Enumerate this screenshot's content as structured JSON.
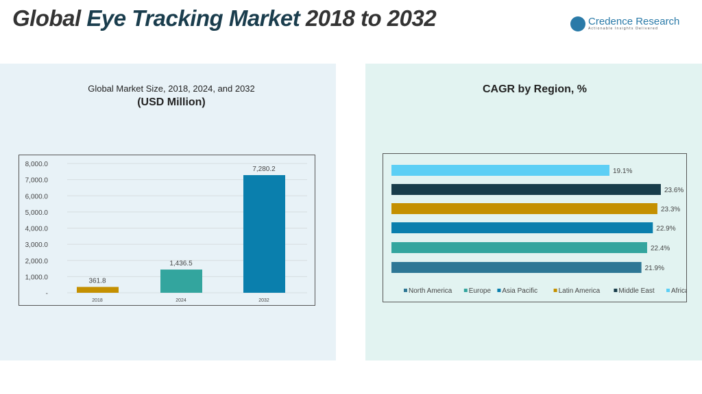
{
  "header": {
    "title_prefix": "Global ",
    "title_accent": "Eye Tracking Market",
    "title_suffix": " 2018 to 2032",
    "logo_name": "Credence Research",
    "logo_tagline": "Actionable Insights Delivered"
  },
  "chart_data": [
    {
      "type": "bar",
      "title": "Global Market Size, 2018, 2024, and 2032",
      "subtitle": "(USD Million)",
      "categories": [
        "2018",
        "2024",
        "2032"
      ],
      "values": [
        361.8,
        1436.5,
        7280.2
      ],
      "value_labels": [
        "361.8",
        "1,436.5",
        "7,280.2"
      ],
      "colors": [
        "#c49000",
        "#33a59e",
        "#0a7fad"
      ],
      "ylim": [
        0,
        8000
      ],
      "yticks": [
        "-",
        "1,000.0",
        "2,000.0",
        "3,000.0",
        "4,000.0",
        "5,000.0",
        "6,000.0",
        "7,000.0",
        "8,000.0"
      ],
      "grid": true
    },
    {
      "type": "bar",
      "orientation": "horizontal",
      "title": "CAGR by Region, %",
      "categories": [
        "North America",
        "Europe",
        "Asia Pacific",
        "Latin America",
        "Middle East",
        "Africa"
      ],
      "values": [
        21.9,
        22.4,
        22.9,
        23.3,
        23.6,
        19.1
      ],
      "value_labels": [
        "21.9%",
        "22.4%",
        "22.9%",
        "23.3%",
        "23.6%",
        "19.1%"
      ],
      "colors": [
        "#2e7795",
        "#33a59e",
        "#0a7fad",
        "#c49000",
        "#183c4a",
        "#5ccff5"
      ],
      "legend": "bottom"
    }
  ]
}
